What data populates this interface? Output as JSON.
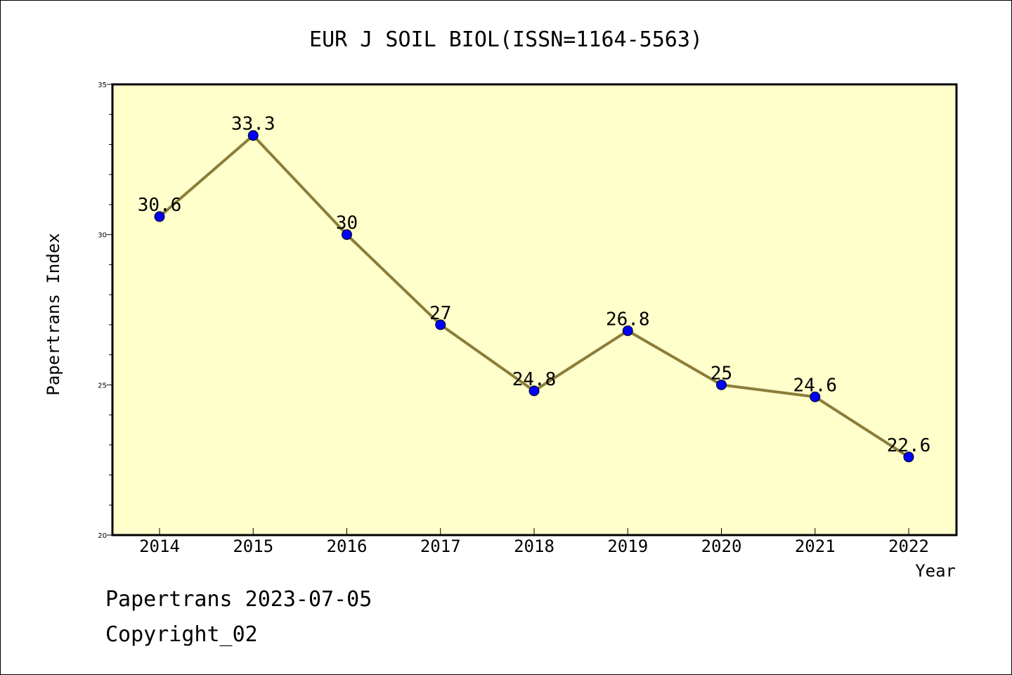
{
  "chart_data": {
    "type": "line",
    "title": "EUR J SOIL BIOL(ISSN=1164-5563)",
    "xlabel": "Year",
    "ylabel": "Papertrans Index",
    "categories": [
      "2014",
      "2015",
      "2016",
      "2017",
      "2018",
      "2019",
      "2020",
      "2021",
      "2022"
    ],
    "series": [
      {
        "values": [
          30.6,
          33.3,
          30,
          27,
          24.8,
          26.8,
          25,
          24.6,
          22.6
        ],
        "data_labels": [
          "30.6",
          "33.3",
          "30",
          "27",
          "24.8",
          "26.8",
          "25",
          "24.6",
          "22.6"
        ]
      }
    ],
    "ylim": [
      20,
      35
    ],
    "yticks": [
      "20",
      "25",
      "30",
      "35"
    ],
    "grid": false,
    "legend": "none",
    "colors": {
      "plot_background": "#ffffcc",
      "line": "#8b7d3a",
      "marker": "#0000ff"
    }
  },
  "footer": {
    "line1": "Papertrans 2023-07-05",
    "line2": "Copyright_02"
  }
}
